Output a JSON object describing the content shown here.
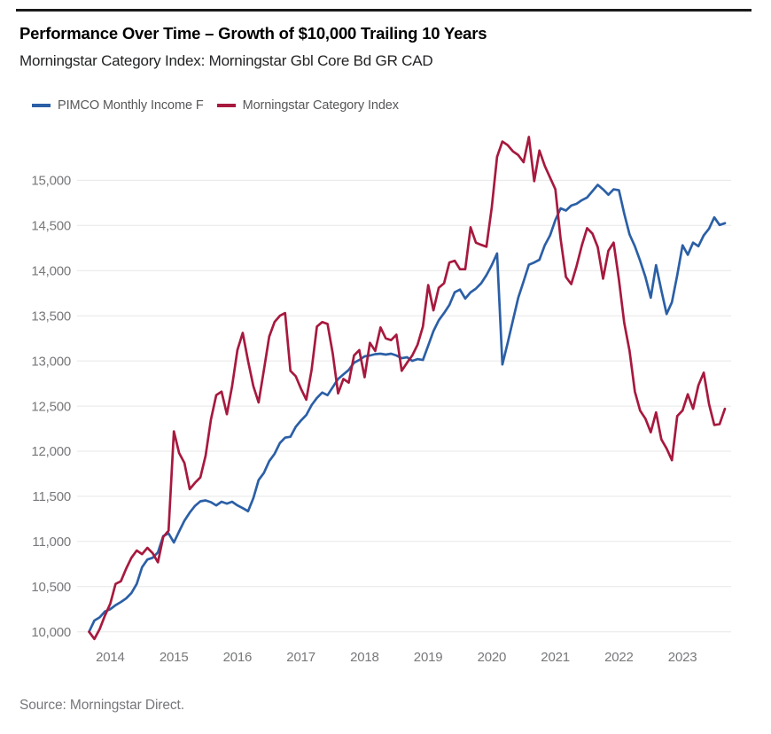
{
  "header": {
    "title": "Performance Over Time – Growth of $10,000 Trailing 10 Years",
    "subtitle": "Morningstar Category Index: Morningstar Gbl Core Bd GR CAD"
  },
  "footer": {
    "source": "Source: Morningstar Direct."
  },
  "colors": {
    "top_rule": "#1a1a1a",
    "grid": "#e7e7e7",
    "axis_text": "#77787b"
  },
  "chart_data": {
    "type": "line",
    "title": "Performance Over Time – Growth of $10,000 Trailing 10 Years",
    "x_start": "2013-09",
    "x_frequency": "monthly",
    "x_tick_labels": [
      "2014",
      "2015",
      "2016",
      "2017",
      "2018",
      "2019",
      "2020",
      "2021",
      "2022",
      "2023"
    ],
    "y_ticks": [
      10000,
      10500,
      11000,
      11500,
      12000,
      12500,
      13000,
      13500,
      14000,
      14500,
      15000
    ],
    "ylim": [
      9900,
      15500
    ],
    "grid": "horizontal",
    "legend_position": "top-left",
    "series": [
      {
        "id": "pimco-monthly-income-f",
        "name": "PIMCO Monthly Income F",
        "color": "#2b5fa6",
        "values": [
          10000,
          10125,
          10160,
          10225,
          10250,
          10295,
          10330,
          10370,
          10430,
          10530,
          10715,
          10800,
          10820,
          10880,
          11060,
          11090,
          10990,
          11110,
          11230,
          11320,
          11395,
          11445,
          11455,
          11435,
          11400,
          11440,
          11420,
          11440,
          11400,
          11370,
          11335,
          11480,
          11680,
          11760,
          11890,
          11970,
          12090,
          12150,
          12160,
          12270,
          12340,
          12400,
          12510,
          12590,
          12650,
          12620,
          12710,
          12800,
          12850,
          12900,
          12980,
          13010,
          13050,
          13060,
          13075,
          13080,
          13070,
          13080,
          13060,
          13030,
          13040,
          13000,
          13020,
          13010,
          13170,
          13330,
          13450,
          13530,
          13620,
          13760,
          13790,
          13690,
          13760,
          13800,
          13860,
          13950,
          14060,
          14190,
          12960,
          13200,
          13450,
          13700,
          13880,
          14065,
          14090,
          14120,
          14280,
          14390,
          14560,
          14690,
          14665,
          14720,
          14740,
          14780,
          14810,
          14880,
          14950,
          14900,
          14840,
          14900,
          14890,
          14630,
          14400,
          14270,
          14110,
          13930,
          13700,
          14060,
          13780,
          13520,
          13650,
          13950,
          14280,
          14175,
          14310,
          14270,
          14390,
          14465,
          14590,
          14505,
          14525
        ]
      },
      {
        "id": "morningstar-category-index",
        "name": "Morningstar Category Index",
        "color": "#a7193e",
        "values": [
          10000,
          9920,
          10030,
          10180,
          10310,
          10530,
          10560,
          10700,
          10820,
          10900,
          10860,
          10930,
          10870,
          10770,
          11050,
          11120,
          12220,
          11980,
          11870,
          11580,
          11650,
          11710,
          11950,
          12350,
          12620,
          12660,
          12410,
          12720,
          13120,
          13310,
          13000,
          12720,
          12540,
          12900,
          13270,
          13430,
          13500,
          13530,
          12890,
          12830,
          12690,
          12570,
          12900,
          13380,
          13430,
          13410,
          13080,
          12640,
          12800,
          12760,
          13060,
          13120,
          12820,
          13200,
          13110,
          13370,
          13250,
          13230,
          13290,
          12890,
          12980,
          13060,
          13180,
          13380,
          13840,
          13560,
          13810,
          13860,
          14090,
          14110,
          14015,
          14015,
          14480,
          14310,
          14285,
          14265,
          14700,
          15260,
          15430,
          15390,
          15320,
          15280,
          15200,
          15480,
          14990,
          15330,
          15160,
          15030,
          14900,
          14350,
          13930,
          13850,
          14050,
          14280,
          14470,
          14410,
          14260,
          13910,
          14220,
          14310,
          13900,
          13420,
          13110,
          12660,
          12450,
          12360,
          12210,
          12430,
          12130,
          12030,
          11900,
          12390,
          12450,
          12630,
          12470,
          12730,
          12870,
          12520,
          12290,
          12300,
          12470
        ]
      }
    ]
  }
}
